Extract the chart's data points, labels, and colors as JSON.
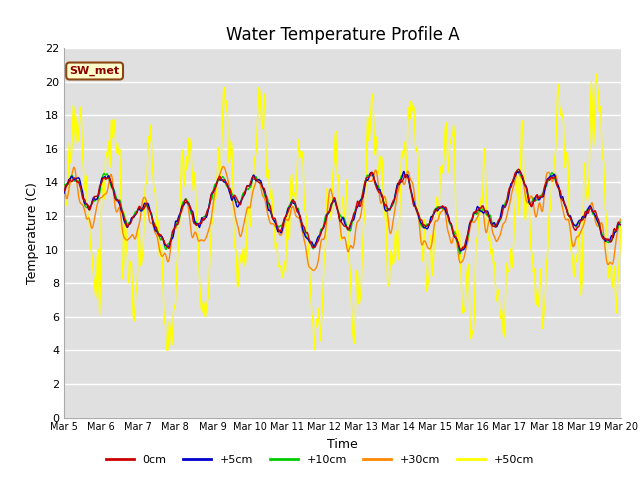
{
  "title": "Water Temperature Profile A",
  "xlabel": "Time",
  "ylabel": "Temperature (C)",
  "ylim": [
    0,
    22
  ],
  "yticks": [
    0,
    2,
    4,
    6,
    8,
    10,
    12,
    14,
    16,
    18,
    20,
    22
  ],
  "date_labels": [
    "Mar 5",
    "Mar 6",
    "Mar 7",
    "Mar 8",
    "Mar 9",
    "Mar 10",
    "Mar 11",
    "Mar 12",
    "Mar 13",
    "Mar 14",
    "Mar 15",
    "Mar 16",
    "Mar 17",
    "Mar 18",
    "Mar 19",
    "Mar 20"
  ],
  "legend_labels": [
    "0cm",
    "+5cm",
    "+10cm",
    "+30cm",
    "+50cm"
  ],
  "line_colors": [
    "#cc0000",
    "#0000cc",
    "#00cc00",
    "#ff8800",
    "#ffff00"
  ],
  "annotation_text": "SW_met",
  "bg_color": "#e0e0e0",
  "title_fontsize": 12,
  "label_fontsize": 9,
  "tick_fontsize": 8
}
